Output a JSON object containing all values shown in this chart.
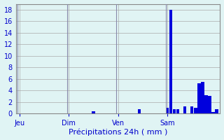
{
  "title": "",
  "xlabel": "Précipitations 24h ( mm )",
  "ylabel": "",
  "background_color": "#e0f4f4",
  "bar_color": "#0000dd",
  "grid_color": "#aaaaaa",
  "text_color": "#0000cc",
  "ylim": [
    0,
    19
  ],
  "yticks": [
    0,
    2,
    4,
    6,
    8,
    10,
    12,
    14,
    16,
    18
  ],
  "day_labels": [
    "Jeu",
    "Dim",
    "Ven",
    "Sam"
  ],
  "day_positions": [
    0,
    14,
    28,
    42
  ],
  "bar_values": [
    0,
    0,
    0,
    0,
    0,
    0,
    0,
    0,
    0,
    0,
    0,
    0,
    0,
    0,
    0,
    0,
    0,
    0,
    0,
    0,
    0,
    0.4,
    0,
    0,
    0,
    0,
    0,
    0,
    0,
    0,
    0,
    0,
    0,
    0,
    0.8,
    0,
    0,
    0,
    0,
    0,
    0,
    0,
    1,
    18,
    0.8,
    0.8,
    0,
    1.2,
    0,
    1.2,
    1,
    5.2,
    5.5,
    3.2,
    3,
    0.2,
    0.8
  ]
}
